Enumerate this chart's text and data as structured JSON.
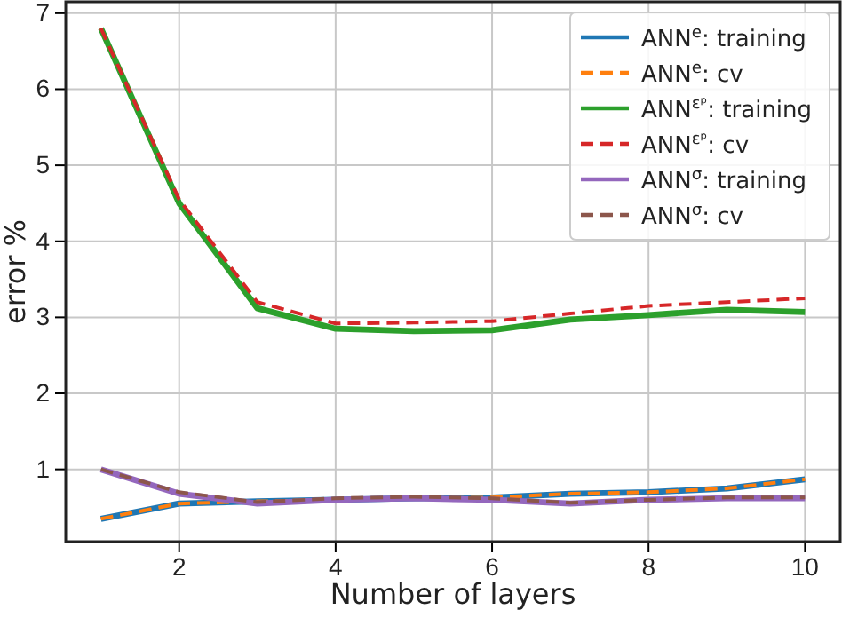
{
  "chart_data": {
    "type": "line",
    "xlabel": "Number of layers",
    "ylabel": "error %",
    "x": [
      1,
      2,
      3,
      4,
      5,
      6,
      7,
      8,
      9,
      10
    ],
    "xlim": [
      0.55,
      10.45
    ],
    "ylim": [
      0.05,
      7.15
    ],
    "xticks": [
      2,
      4,
      6,
      8,
      10
    ],
    "yticks": [
      1,
      2,
      3,
      4,
      5,
      6,
      7
    ],
    "grid": true,
    "legend": "top right",
    "marker": "none",
    "series": [
      {
        "name": "ANN$^{e}$: training",
        "color": "#1f77b4",
        "line_style": "solid",
        "values": [
          0.35,
          0.55,
          0.58,
          0.6,
          0.62,
          0.63,
          0.68,
          0.7,
          0.75,
          0.87
        ]
      },
      {
        "name": "ANN$^{e}$: cv",
        "color": "#ff7f0e",
        "line_style": "dashed",
        "values": [
          0.35,
          0.55,
          0.58,
          0.6,
          0.62,
          0.63,
          0.68,
          0.7,
          0.75,
          0.87
        ]
      },
      {
        "name": "ANN$^{εᵖ}$: training",
        "color": "#2ca02c",
        "line_style": "solid",
        "values": [
          6.8,
          4.5,
          3.12,
          2.85,
          2.82,
          2.83,
          2.97,
          3.03,
          3.1,
          3.07
        ]
      },
      {
        "name": "ANN$^{εᵖ}$: cv",
        "color": "#d62728",
        "line_style": "dashed",
        "values": [
          6.8,
          4.55,
          3.2,
          2.92,
          2.93,
          2.95,
          3.05,
          3.15,
          3.2,
          3.25
        ]
      },
      {
        "name": "ANN$^{σ}$: training",
        "color": "#9467bd",
        "line_style": "solid",
        "values": [
          1.0,
          0.68,
          0.55,
          0.6,
          0.62,
          0.6,
          0.55,
          0.6,
          0.62,
          0.62
        ]
      },
      {
        "name": "ANN$^{σ}$: cv",
        "color": "#8c564b",
        "line_style": "dashed",
        "values": [
          1.0,
          0.7,
          0.57,
          0.62,
          0.64,
          0.62,
          0.56,
          0.6,
          0.63,
          0.63
        ]
      }
    ]
  }
}
